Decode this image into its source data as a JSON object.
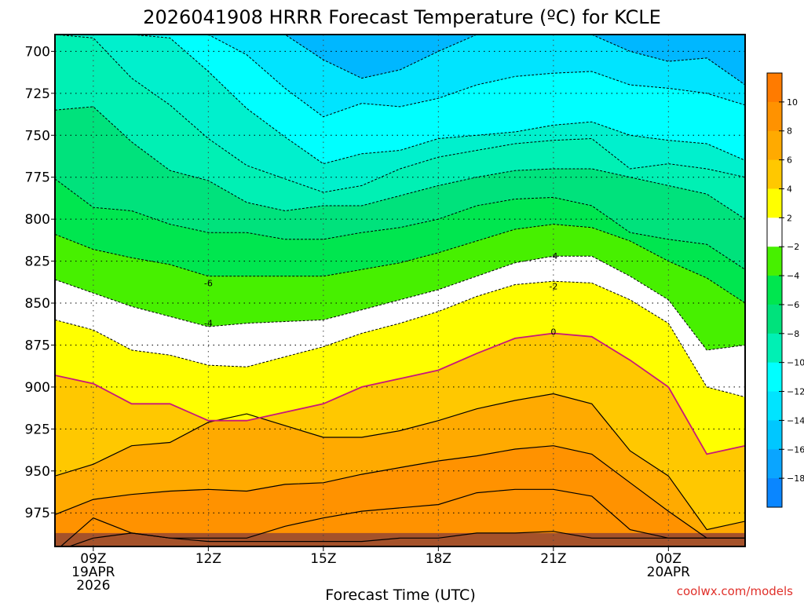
{
  "chart_data": {
    "type": "heatmap",
    "title": "2026041908 HRRR Forecast Temperature (ºC) for KCLE",
    "xlabel": "Forecast Time (UTC)",
    "ylabel": "",
    "credit": "coolwx.com/models",
    "x_hours": [
      8,
      9,
      10,
      11,
      12,
      13,
      14,
      15,
      16,
      17,
      18,
      19,
      20,
      21,
      22,
      23,
      24,
      25,
      26
    ],
    "xlim": [
      8,
      26
    ],
    "ylim": [
      690,
      995
    ],
    "x_ticks": [
      {
        "hour": 9,
        "lines": [
          "09Z",
          "19APR",
          "2026"
        ]
      },
      {
        "hour": 12,
        "lines": [
          "12Z"
        ]
      },
      {
        "hour": 15,
        "lines": [
          "15Z"
        ]
      },
      {
        "hour": 18,
        "lines": [
          "18Z"
        ]
      },
      {
        "hour": 21,
        "lines": [
          "21Z"
        ]
      },
      {
        "hour": 24,
        "lines": [
          "00Z",
          "20APR"
        ]
      }
    ],
    "y_ticks": [
      700,
      725,
      750,
      775,
      800,
      825,
      850,
      875,
      900,
      925,
      950,
      975
    ],
    "y_tick_labels": [
      "700",
      "725",
      "750",
      "775",
      "800",
      "825",
      "850",
      "875",
      "900",
      "925",
      "950",
      "975"
    ],
    "surface_pressure_hPa": 987,
    "contour_levels": [
      8,
      6,
      4,
      2,
      0,
      -2,
      -4,
      -6,
      -8,
      -10,
      -12,
      -14,
      -16,
      -18,
      -20
    ],
    "isotherms": [
      {
        "t": 8,
        "p": [
          998,
          990,
          987,
          990,
          992,
          992,
          992,
          992,
          992,
          990,
          990,
          987,
          987,
          986,
          990,
          990,
          990,
          990,
          990
        ]
      },
      {
        "t": 6,
        "p": [
          998,
          978,
          987,
          990,
          990,
          990,
          983,
          978,
          974,
          972,
          970,
          963,
          961,
          961,
          965,
          985,
          990,
          990,
          990
        ]
      },
      {
        "t": 4,
        "p": [
          976,
          967,
          964,
          962,
          961,
          962,
          958,
          957,
          952,
          948,
          944,
          941,
          937,
          935,
          940,
          957,
          974,
          990,
          990
        ]
      },
      {
        "t": 2,
        "p": [
          953,
          946,
          935,
          933,
          921,
          916,
          923,
          930,
          930,
          926,
          920,
          913,
          908,
          904,
          910,
          938,
          953,
          985,
          980
        ]
      },
      {
        "t": 0,
        "p": [
          893,
          898,
          910,
          910,
          920,
          920,
          915,
          910,
          900,
          895,
          890,
          880,
          871,
          868,
          870,
          884,
          900,
          940,
          935
        ]
      },
      {
        "t": -2,
        "p": [
          860,
          866,
          878,
          881,
          887,
          888,
          882,
          876,
          868,
          862,
          855,
          846,
          839,
          837,
          838,
          848,
          862,
          900,
          906
        ]
      },
      {
        "t": -4,
        "p": [
          836,
          844,
          852,
          858,
          864,
          862,
          861,
          860,
          854,
          848,
          842,
          834,
          826,
          822,
          822,
          834,
          848,
          878,
          875
        ]
      },
      {
        "t": -6,
        "p": [
          809,
          818,
          823,
          827,
          834,
          834,
          834,
          834,
          830,
          826,
          820,
          813,
          806,
          803,
          805,
          813,
          825,
          835,
          850
        ]
      },
      {
        "t": -8,
        "p": [
          776,
          793,
          795,
          803,
          808,
          808,
          812,
          812,
          808,
          805,
          800,
          792,
          788,
          787,
          792,
          808,
          812,
          815,
          830
        ]
      },
      {
        "t": -10,
        "p": [
          735,
          733,
          754,
          771,
          777,
          790,
          795,
          792,
          792,
          786,
          780,
          775,
          771,
          770,
          770,
          775,
          780,
          785,
          800
        ]
      },
      {
        "t": -12,
        "p": [
          690,
          692,
          716,
          732,
          752,
          768,
          776,
          784,
          780,
          770,
          763,
          759,
          755,
          753,
          752,
          770,
          767,
          770,
          775
        ]
      },
      {
        "t": -14,
        "p": [
          690,
          690,
          690,
          692,
          712,
          734,
          751,
          767,
          761,
          759,
          752,
          750,
          748,
          744,
          742,
          750,
          753,
          755,
          765
        ]
      },
      {
        "t": -16,
        "p": [
          690,
          690,
          690,
          690,
          690,
          702,
          722,
          739,
          731,
          733,
          728,
          720,
          715,
          713,
          712,
          720,
          722,
          725,
          732
        ]
      },
      {
        "t": -18,
        "p": [
          690,
          690,
          690,
          690,
          690,
          690,
          690,
          705,
          716,
          711,
          700,
          690,
          690,
          690,
          690,
          700,
          706,
          704,
          720
        ]
      },
      {
        "t": -20,
        "p": [
          690,
          690,
          690,
          690,
          690,
          690,
          690,
          690,
          690,
          690,
          690,
          690,
          690,
          690,
          690,
          690,
          690,
          690,
          690
        ]
      }
    ],
    "contour_labels": [
      {
        "text": "-6",
        "hour": 12,
        "p": 838
      },
      {
        "text": "-4",
        "hour": 12,
        "p": 862
      },
      {
        "text": "-4",
        "hour": 21,
        "p": 822
      },
      {
        "text": "-2",
        "hour": 21,
        "p": 840
      },
      {
        "text": "0",
        "hour": 21,
        "p": 867
      }
    ],
    "colorbar": {
      "levels": [
        12,
        10,
        8,
        6,
        4,
        2,
        -2,
        -4,
        -6,
        -8,
        -10,
        -12,
        -14,
        -16,
        -18,
        -20
      ],
      "labels": [
        "10",
        "8",
        "6",
        "4",
        "2",
        "−2",
        "−4",
        "−6",
        "−8",
        "−10",
        "−12",
        "−14",
        "−16",
        "−18"
      ],
      "colors": [
        "#ff7b00",
        "#ff9200",
        "#ffaa00",
        "#ffc800",
        "#ffff00",
        "#ffffff",
        "#47f000",
        "#00e64f",
        "#00e27c",
        "#00f0b4",
        "#00ffff",
        "#00e4ff",
        "#00c7ff",
        "#0aa5ff",
        "#0a86ff"
      ]
    },
    "fill_colors": {
      "t6": "#ff9200",
      "t4": "#ffaa00",
      "t2": "#ffc800",
      "t0": "#ffff00",
      "tm2": "#ffffff",
      "tm4": "#47f000",
      "tm6": "#00e64f",
      "tm8": "#00e27c",
      "tm10": "#00f0b4",
      "tm12": "#00f0cd",
      "tm14": "#00ffff",
      "tm16": "#00e4ff",
      "tm18": "#00b7ff",
      "tm20": "#0a86ff"
    },
    "ground_color": "#a5522a",
    "freezing_line_color": "#c8187a"
  }
}
